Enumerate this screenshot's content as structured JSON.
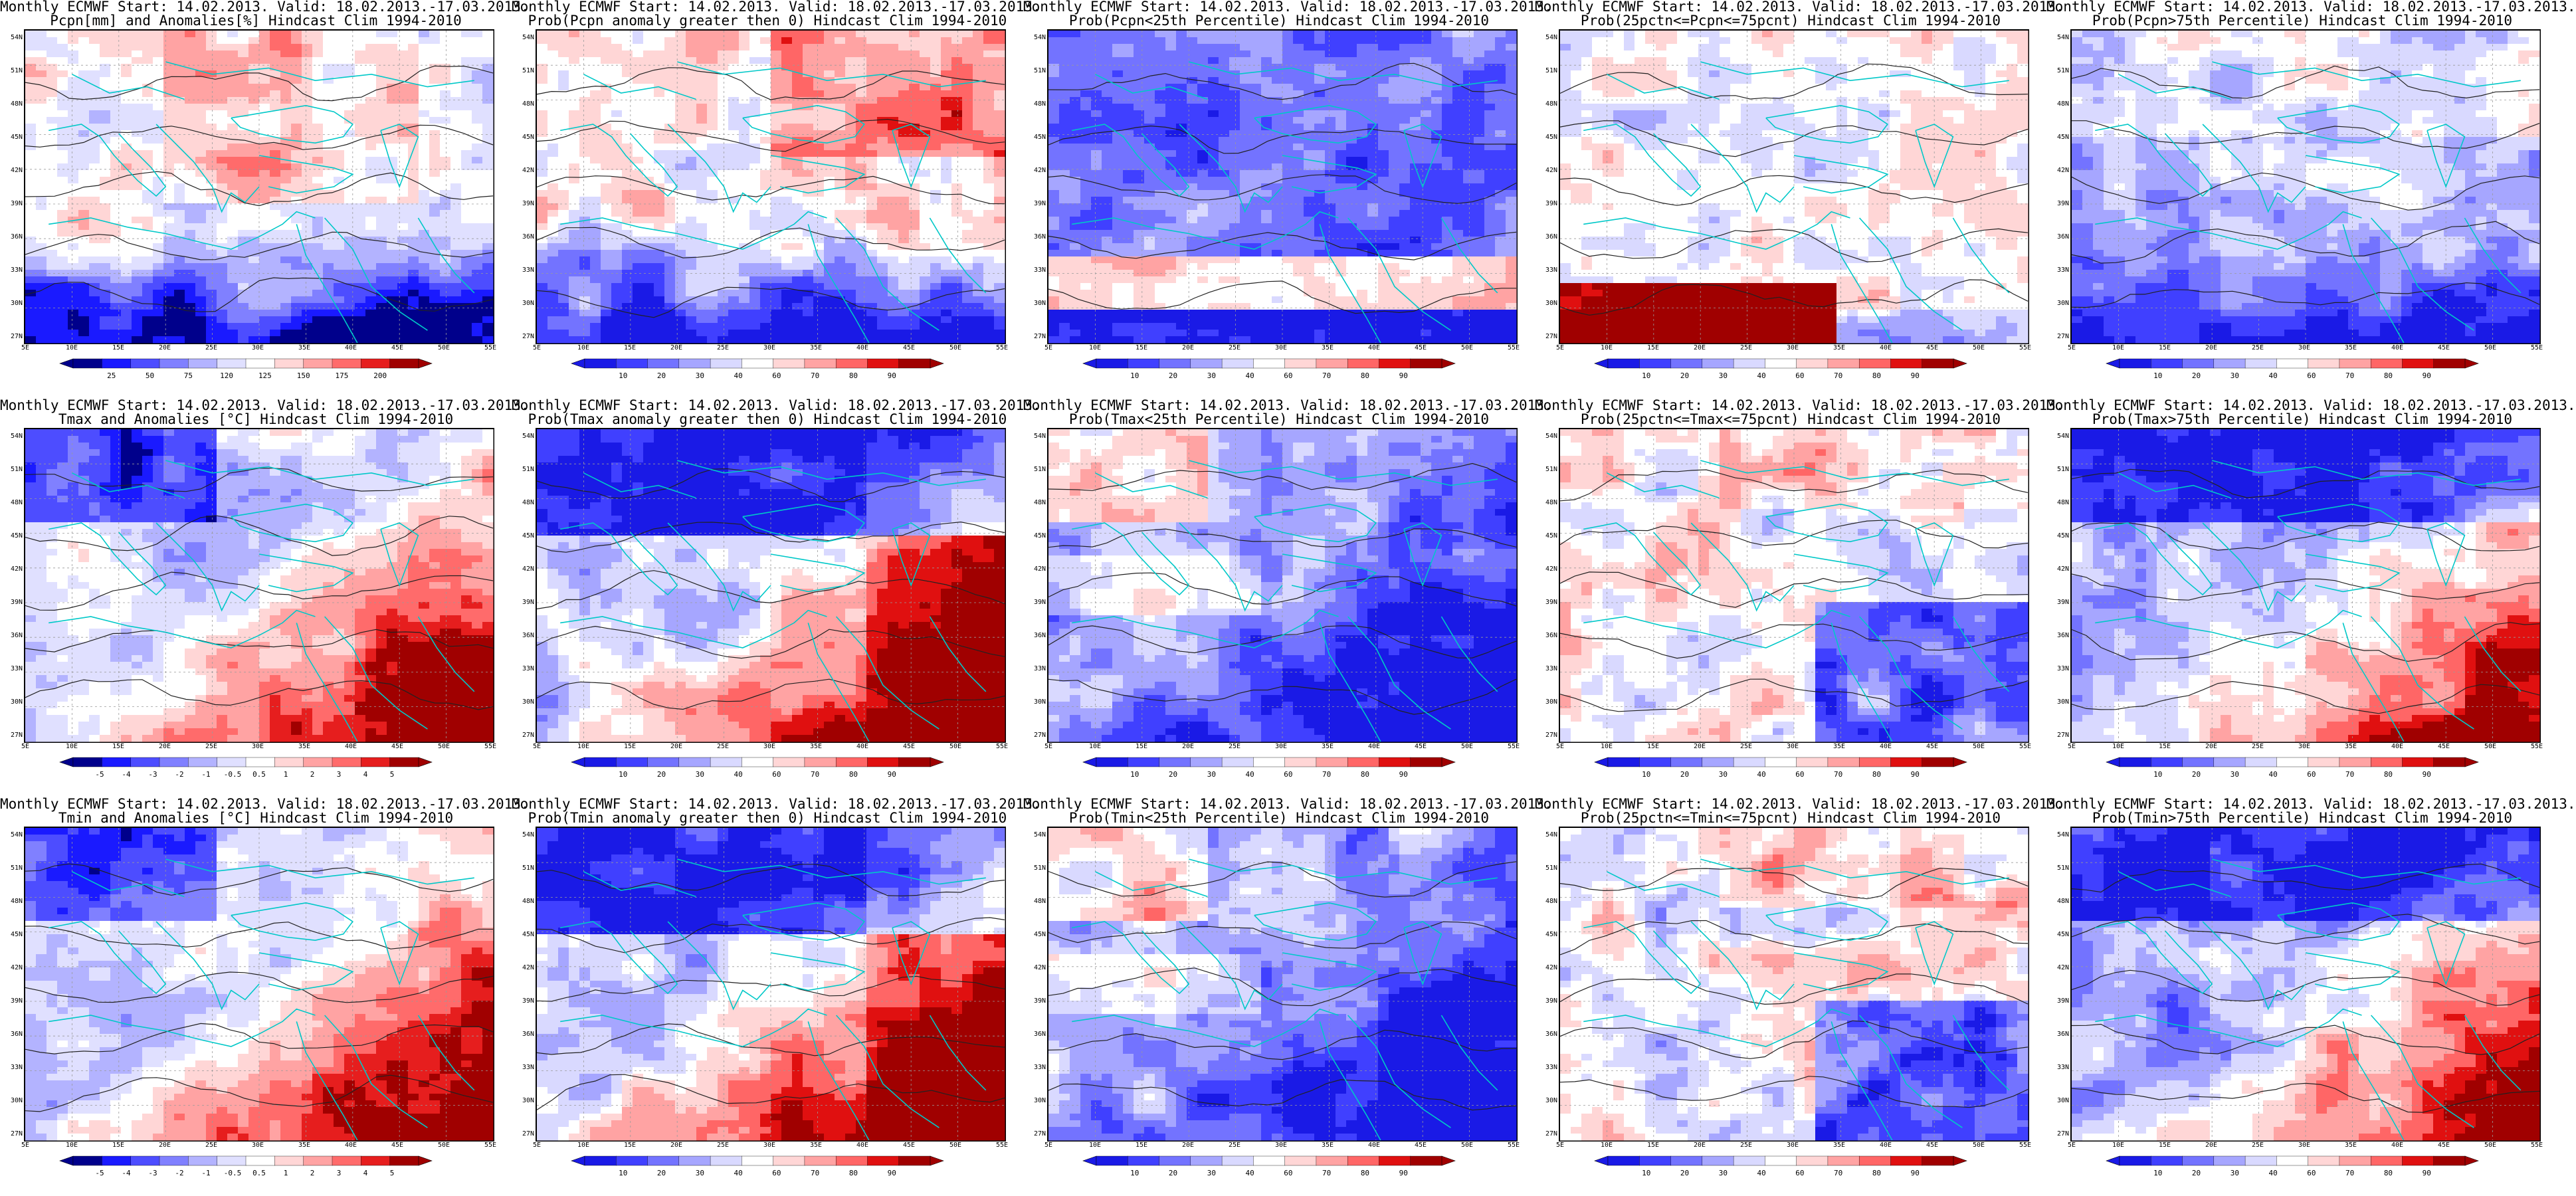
{
  "lat_labels": [
    "54N",
    "51N",
    "48N",
    "45N",
    "42N",
    "39N",
    "36N",
    "33N",
    "30N",
    "27N"
  ],
  "lon_labels": [
    "5E",
    "10E",
    "15E",
    "20E",
    "25E",
    "30E",
    "35E",
    "40E",
    "45E",
    "50E",
    "55E"
  ],
  "colors": {
    "sea_coast": "#00c8c8",
    "contour": "#222222",
    "precip_scale": [
      "#00008b",
      "#1a1aff",
      "#4d4dff",
      "#8080ff",
      "#b3b3ff",
      "#e0e0ff",
      "#ffffff",
      "#ffd6d6",
      "#ffa3a3",
      "#ff6b6b",
      "#e61e1e",
      "#a00000"
    ],
    "anomaly_scale": [
      "#00008b",
      "#1a1aff",
      "#4d4dff",
      "#8080ff",
      "#b3b3ff",
      "#e0e0ff",
      "#ffffff",
      "#ffd6d6",
      "#ffa3a3",
      "#ff6b6b",
      "#e61e1e",
      "#a00000"
    ],
    "prob_scale": [
      "#1a1ae6",
      "#4040ff",
      "#7373ff",
      "#a6a6ff",
      "#d9d9ff",
      "#ffffff",
      "#ffd6d6",
      "#ffa3a3",
      "#ff6666",
      "#e01010",
      "#a00000"
    ]
  },
  "colorbars": {
    "precip": [
      "25",
      "50",
      "75",
      "120",
      "125",
      "150",
      "175",
      "200"
    ],
    "anomaly": [
      "-5",
      "-4",
      "-3",
      "-2",
      "-1",
      "-0.5",
      "0.5",
      "1",
      "2",
      "3",
      "4",
      "5"
    ],
    "prob": [
      "10",
      "20",
      "30",
      "40",
      "60",
      "70",
      "80",
      "90"
    ]
  },
  "panels": [
    {
      "id": "r1c1",
      "title_1": "Monthly ECMWF Start: 14.02.2013. Valid: 18.02.2013.-17.03.2013.",
      "title_2": "Pcpn[mm] and Anomalies[%] Hindcast Clim 1994-2010",
      "scale": "precip",
      "pattern": "pcpn_anom"
    },
    {
      "id": "r1c2",
      "title_1": "Monthly ECMWF Start: 14.02.2013. Valid: 18.02.2013.-17.03.2013.",
      "title_2": "Prob(Pcpn anomaly greater then 0) Hindcast Clim 1994-2010",
      "scale": "prob",
      "pattern": "pcpn_pos"
    },
    {
      "id": "r1c3",
      "title_1": "Monthly ECMWF Start: 14.02.2013. Valid: 18.02.2013.-17.03.2013.",
      "title_2": "Prob(Pcpn<25th Percentile) Hindcast Clim 1994-2010",
      "scale": "prob",
      "pattern": "pcpn_low"
    },
    {
      "id": "r1c4",
      "title_1": "Monthly ECMWF Start: 14.02.2013. Valid: 18.02.2013.-17.03.2013.",
      "title_2": "Prob(25pctn<=Pcpn<=75pcnt) Hindcast Clim 1994-2010",
      "scale": "prob",
      "pattern": "pcpn_mid"
    },
    {
      "id": "r1c5",
      "title_1": "Monthly ECMWF Start: 14.02.2013. Valid: 18.02.2013.-17.03.2013.",
      "title_2": "Prob(Pcpn>75th Percentile) Hindcast Clim 1994-2010",
      "scale": "prob",
      "pattern": "pcpn_high"
    },
    {
      "id": "r2c1",
      "title_1": "Monthly ECMWF Start: 14.02.2013. Valid: 18.02.2013.-17.03.2013.",
      "title_2": "Tmax and Anomalies [°C] Hindcast Clim 1994-2010",
      "scale": "anomaly",
      "pattern": "warm_se"
    },
    {
      "id": "r2c2",
      "title_1": "Monthly ECMWF Start: 14.02.2013. Valid: 18.02.2013.-17.03.2013.",
      "title_2": "Prob(Tmax anomaly greater then 0) Hindcast Clim 1994-2010",
      "scale": "prob",
      "pattern": "warm_se_strong"
    },
    {
      "id": "r2c3",
      "title_1": "Monthly ECMWF Start: 14.02.2013. Valid: 18.02.2013.-17.03.2013.",
      "title_2": "Prob(Tmax<25th Percentile) Hindcast Clim 1994-2010",
      "scale": "prob",
      "pattern": "cold_low"
    },
    {
      "id": "r2c4",
      "title_1": "Monthly ECMWF Start: 14.02.2013. Valid: 18.02.2013.-17.03.2013.",
      "title_2": "Prob(25pctn<=Tmax<=75pcnt) Hindcast Clim 1994-2010",
      "scale": "prob",
      "pattern": "mid_mixed"
    },
    {
      "id": "r2c5",
      "title_1": "Monthly ECMWF Start: 14.02.2013. Valid: 18.02.2013.-17.03.2013.",
      "title_2": "Prob(Tmax>75th Percentile) Hindcast Clim 1994-2010",
      "scale": "prob",
      "pattern": "high_se"
    },
    {
      "id": "r3c1",
      "title_1": "Monthly ECMWF Start: 14.02.2013. Valid: 18.02.2013.-17.03.2013.",
      "title_2": "Tmin and Anomalies [°C] Hindcast Clim 1994-2010",
      "scale": "anomaly",
      "pattern": "warm_se"
    },
    {
      "id": "r3c2",
      "title_1": "Monthly ECMWF Start: 14.02.2013. Valid: 18.02.2013.-17.03.2013.",
      "title_2": "Prob(Tmin anomaly greater then 0) Hindcast Clim 1994-2010",
      "scale": "prob",
      "pattern": "warm_se_strong"
    },
    {
      "id": "r3c3",
      "title_1": "Monthly ECMWF Start: 14.02.2013. Valid: 18.02.2013.-17.03.2013.",
      "title_2": "Prob(Tmin<25th Percentile) Hindcast Clim 1994-2010",
      "scale": "prob",
      "pattern": "cold_low"
    },
    {
      "id": "r3c4",
      "title_1": "Monthly ECMWF Start: 14.02.2013. Valid: 18.02.2013.-17.03.2013.",
      "title_2": "Prob(25pctn<=Tmin<=75pcnt) Hindcast Clim 1994-2010",
      "scale": "prob",
      "pattern": "mid_mixed"
    },
    {
      "id": "r3c5",
      "title_1": "Monthly ECMWF Start: 14.02.2013. Valid: 18.02.2013.-17.03.2013.",
      "title_2": "Prob(Tmin>75th Percentile) Hindcast Clim 1994-2010",
      "scale": "prob",
      "pattern": "high_se"
    }
  ]
}
